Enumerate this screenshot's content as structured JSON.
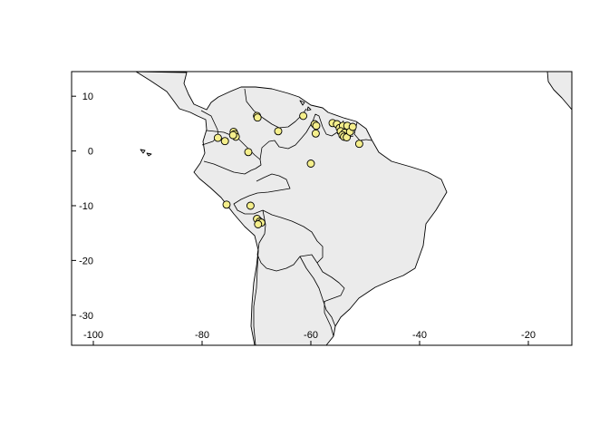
{
  "map": {
    "x_ticks": [
      "-100",
      "-80",
      "-60",
      "-40",
      "-20"
    ],
    "y_ticks": [
      "10",
      "0",
      "-10",
      "-20",
      "-30"
    ],
    "x_tick_values": [
      -100,
      -80,
      -60,
      -40,
      -20
    ],
    "y_tick_values": [
      10,
      0,
      -10,
      -20,
      -30
    ],
    "xlim": [
      -104,
      -12
    ],
    "ylim": [
      -35.5,
      14.5
    ],
    "land_color": "#ebebeb",
    "point_color": "#f5ef8c",
    "border_color": "#000000"
  },
  "chart_data": {
    "type": "scatter",
    "title": "",
    "xlabel": "",
    "ylabel": "",
    "xlim": [
      -104,
      -12
    ],
    "ylim": [
      -35.5,
      14.5
    ],
    "grid": false,
    "points": [
      {
        "lon": -77.1,
        "lat": 2.4
      },
      {
        "lon": -75.8,
        "lat": 1.8
      },
      {
        "lon": -74.2,
        "lat": 3.5
      },
      {
        "lon": -74.0,
        "lat": 3.1
      },
      {
        "lon": -73.8,
        "lat": 2.6
      },
      {
        "lon": -74.3,
        "lat": 2.9
      },
      {
        "lon": -69.9,
        "lat": 6.4
      },
      {
        "lon": -69.8,
        "lat": 6.1
      },
      {
        "lon": -66.0,
        "lat": 3.6
      },
      {
        "lon": -61.4,
        "lat": 6.4
      },
      {
        "lon": -59.3,
        "lat": 4.9
      },
      {
        "lon": -59.0,
        "lat": 4.6
      },
      {
        "lon": -59.1,
        "lat": 3.2
      },
      {
        "lon": -56.0,
        "lat": 5.1
      },
      {
        "lon": -55.2,
        "lat": 4.9
      },
      {
        "lon": -54.7,
        "lat": 4.2
      },
      {
        "lon": -54.1,
        "lat": 4.6
      },
      {
        "lon": -53.3,
        "lat": 4.6
      },
      {
        "lon": -54.5,
        "lat": 3.6
      },
      {
        "lon": -53.8,
        "lat": 3.3
      },
      {
        "lon": -54.2,
        "lat": 2.9
      },
      {
        "lon": -53.9,
        "lat": 2.6
      },
      {
        "lon": -53.4,
        "lat": 2.5
      },
      {
        "lon": -52.8,
        "lat": 3.5
      },
      {
        "lon": -52.3,
        "lat": 4.4
      },
      {
        "lon": -51.1,
        "lat": 1.3
      },
      {
        "lon": -60.0,
        "lat": -2.3
      },
      {
        "lon": -71.5,
        "lat": -0.2
      },
      {
        "lon": -75.5,
        "lat": -9.8
      },
      {
        "lon": -71.1,
        "lat": -10.0
      },
      {
        "lon": -69.9,
        "lat": -12.4
      },
      {
        "lon": -69.4,
        "lat": -12.9
      },
      {
        "lon": -69.1,
        "lat": -13.1
      },
      {
        "lon": -69.7,
        "lat": -13.4
      }
    ]
  }
}
